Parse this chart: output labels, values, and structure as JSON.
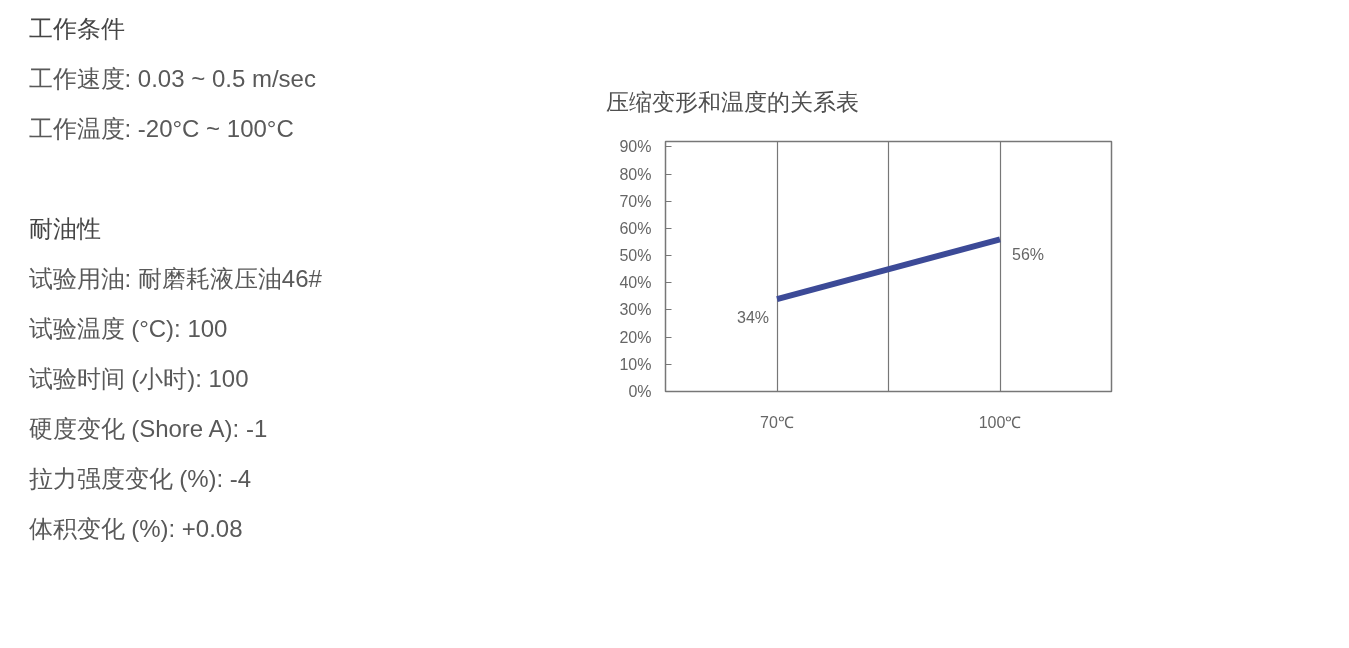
{
  "chart_data": [
    {
      "type": "other",
      "title": "工作条件",
      "annotations": [
        "工作速度: 0.03 ~ 0.5 m/sec",
        "工作温度: -20°C ~ 100°C"
      ]
    },
    {
      "type": "other",
      "title": "耐油性",
      "annotations": [
        "试验用油: 耐磨耗液压油46#",
        "试验温度 (°C): 100",
        "试验时间 (小时): 100",
        "硬度变化 (Shore A): -1",
        "拉力强度变化 (%): -4",
        "体积变化 (%): +0.08"
      ]
    },
    {
      "type": "line",
      "title": "压缩变形和温度的关系表",
      "x": [
        70,
        100
      ],
      "xlim": [
        55,
        115
      ],
      "xticks": [
        {
          "value": 70,
          "label": "70℃"
        },
        {
          "value": 85,
          "label": null
        },
        {
          "value": 100,
          "label": "100℃"
        }
      ],
      "ylim": [
        0,
        92
      ],
      "yticks": [
        {
          "value": 0,
          "label": "0%"
        },
        {
          "value": 10,
          "label": "10%"
        },
        {
          "value": 20,
          "label": "20%"
        },
        {
          "value": 30,
          "label": "30%"
        },
        {
          "value": 40,
          "label": "40%"
        },
        {
          "value": 50,
          "label": "50%"
        },
        {
          "value": 60,
          "label": "60%"
        },
        {
          "value": 70,
          "label": "70%"
        },
        {
          "value": 80,
          "label": "80%"
        },
        {
          "value": 90,
          "label": "90%"
        }
      ],
      "grid": "x",
      "series": [
        {
          "color": "#3c4a97",
          "values": [
            34,
            56
          ],
          "value_labels": [
            "34%",
            "56%"
          ]
        }
      ]
    }
  ]
}
